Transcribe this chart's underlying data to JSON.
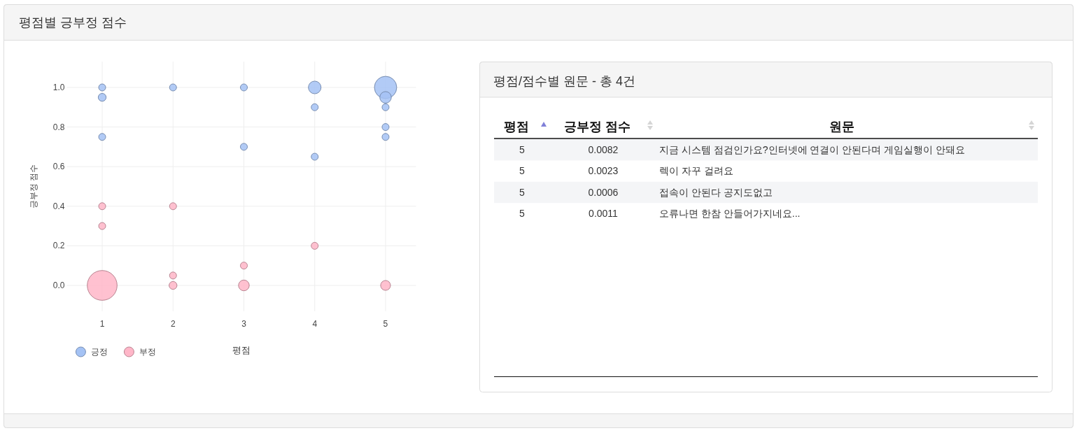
{
  "chart_data": [
    {
      "type": "bubble",
      "title": "평점별 긍부정 점수",
      "xlabel": "평점",
      "ylabel": "긍부정 점수",
      "xlim": [
        0.5,
        5.43
      ],
      "xticks": [
        1,
        2,
        3,
        4,
        5
      ],
      "ylim": [
        -0.13,
        1.13
      ],
      "yticks": [
        {
          "value": 0,
          "label": "0.0"
        },
        0.2,
        0.4,
        0.6,
        0.8,
        {
          "value": 1,
          "label": "1.0"
        }
      ],
      "grid": true,
      "legend": "bottom left",
      "series": [
        {
          "name": "긍정",
          "color": "#a4c2f4",
          "x": [
            1,
            1,
            1,
            2,
            3,
            3,
            4,
            4,
            4,
            5,
            5,
            5,
            5,
            5
          ],
          "values": [
            1.0,
            0.95,
            0.75,
            1.0,
            1.0,
            0.7,
            1.0,
            0.9,
            0.65,
            1.0,
            0.95,
            0.9,
            0.8,
            0.75
          ],
          "sizes": [
            0.055,
            0.07,
            0.055,
            0.055,
            0.055,
            0.055,
            0.18,
            0.055,
            0.055,
            0.56,
            0.15,
            0.055,
            0.055,
            0.055
          ]
        },
        {
          "name": "부정",
          "color": "#ffb6c8",
          "x": [
            1,
            1,
            1,
            2,
            2,
            2,
            3,
            3,
            4,
            5
          ],
          "values": [
            0.4,
            0.3,
            0.0,
            0.4,
            0.05,
            0.0,
            0.1,
            0.0,
            0.2,
            0.0
          ],
          "sizes": [
            0.055,
            0.055,
            1,
            0.055,
            0.055,
            0.07,
            0.055,
            0.13,
            0.055,
            0.11
          ]
        }
      ]
    },
    {
      "type": "other",
      "title": "평점/점수별 원문 - 총 4건",
      "categories": [
        "평점",
        "긍부정 점수",
        "원문"
      ],
      "annotations": [
        "5",
        "0.0082",
        "지금 시스템 점검인가요?인터넷에 연결이 안된다며 게임실행이 안돼요",
        "5",
        "0.0023",
        "렉이 자꾸 걸려요",
        "5",
        "0.0006",
        "접속이 안된다 공지도없고",
        "5",
        "0.0011",
        "오류나면 한참 안들어가지네요..."
      ]
    }
  ]
}
